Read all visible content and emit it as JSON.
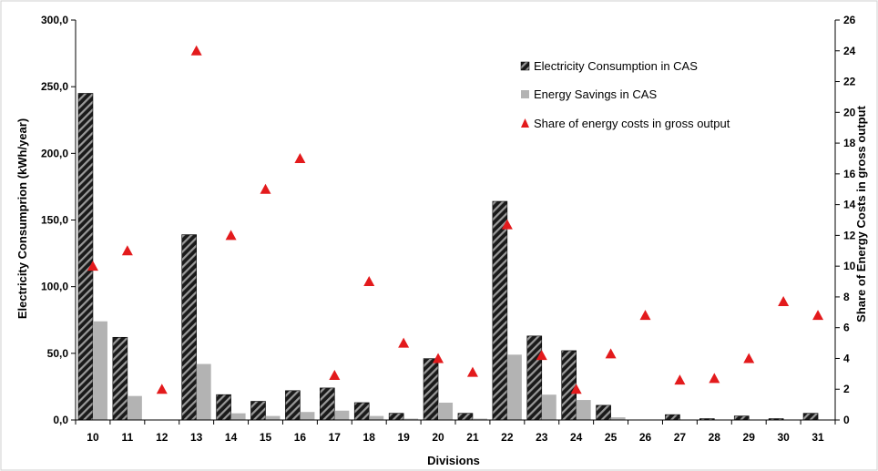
{
  "chart_data": {
    "type": "bar",
    "xlabel": "Divisions",
    "ylabel": "Electricity Consumprion (kWh/year)",
    "y2label": "Share of Energy Costs in gross output",
    "categories": [
      "10",
      "11",
      "12",
      "13",
      "14",
      "15",
      "16",
      "17",
      "18",
      "19",
      "20",
      "21",
      "22",
      "23",
      "24",
      "25",
      "26",
      "27",
      "28",
      "29",
      "30",
      "31"
    ],
    "ylim": [
      0,
      300
    ],
    "yticks": [
      "0,0",
      "50,0",
      "100,0",
      "150,0",
      "200,0",
      "250,0",
      "300,0"
    ],
    "y2lim": [
      0,
      26
    ],
    "y2ticks": [
      "0",
      "2",
      "4",
      "6",
      "8",
      "10",
      "12",
      "14",
      "16",
      "18",
      "20",
      "22",
      "24",
      "26"
    ],
    "legend_position": "top-right",
    "series": [
      {
        "name": "Electricity Consumption in CAS",
        "kind": "bar",
        "axis": "left",
        "color": "#1a1a1a",
        "pattern": "diagonal-hatch",
        "values": [
          245,
          62,
          0,
          139,
          19,
          14,
          22,
          24,
          13,
          5,
          46,
          5,
          164,
          63,
          52,
          11,
          0,
          4,
          1,
          3,
          1,
          5
        ]
      },
      {
        "name": "Energy Savings in CAS",
        "kind": "bar",
        "axis": "left",
        "color": "#b3b3b3",
        "values": [
          74,
          18,
          0,
          42,
          5,
          3,
          6,
          7,
          3,
          1,
          13,
          1,
          49,
          19,
          15,
          2,
          0,
          0,
          0,
          0,
          0,
          0
        ]
      },
      {
        "name": "Share of energy costs in gross output",
        "kind": "scatter",
        "axis": "right",
        "color": "#e31a1c",
        "marker": "triangle",
        "values": [
          10,
          11,
          2,
          24,
          12,
          15,
          17,
          2.9,
          9,
          5,
          4,
          3.1,
          12.7,
          4.2,
          2,
          4.3,
          6.8,
          2.6,
          2.7,
          4,
          7.7,
          6.8
        ]
      }
    ]
  }
}
